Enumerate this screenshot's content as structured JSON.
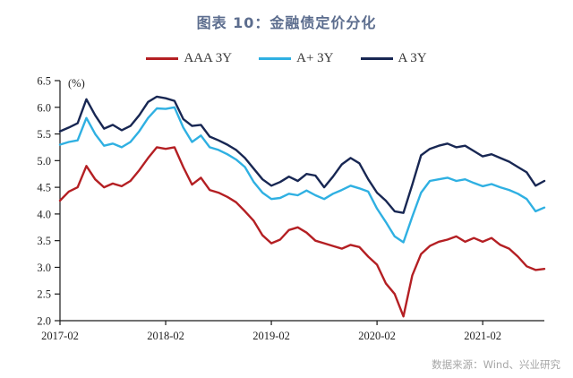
{
  "title": "图表 10：金融债定价分化",
  "source_note": "数据来源：Wind、兴业研究",
  "colors": {
    "axis": "#1a1a1a",
    "tick_text": "#222222",
    "title": "#5c6d8e",
    "source": "#a6a6a6"
  },
  "legend": [
    {
      "label": "AAA 3Y",
      "color": "#b41f23"
    },
    {
      "label": "A+ 3Y",
      "color": "#2fb0e2"
    },
    {
      "label": "A 3Y",
      "color": "#182753"
    }
  ],
  "chart_data": {
    "type": "line",
    "title": "图表 10：金融债定价分化",
    "unit_label": "(%)",
    "xlabel": "",
    "ylabel": "(%)",
    "ylim": [
      2.0,
      6.5
    ],
    "y_tick_step": 0.5,
    "y_tick_labels": [
      "6.5",
      "6.0",
      "5.5",
      "5.0",
      "4.5",
      "4.0",
      "3.5",
      "3.0",
      "2.5",
      "2.0"
    ],
    "x_tick_labels": [
      "2017-02",
      "2018-02",
      "2019-02",
      "2020-02",
      "2021-02"
    ],
    "x_tick_month_index": [
      0,
      12,
      24,
      36,
      48
    ],
    "grid": false,
    "legend_position": "top",
    "categories": [
      "2017-02",
      "2017-03",
      "2017-04",
      "2017-05",
      "2017-06",
      "2017-07",
      "2017-08",
      "2017-09",
      "2017-10",
      "2017-11",
      "2017-12",
      "2018-01",
      "2018-02",
      "2018-03",
      "2018-04",
      "2018-05",
      "2018-06",
      "2018-07",
      "2018-08",
      "2018-09",
      "2018-10",
      "2018-11",
      "2018-12",
      "2019-01",
      "2019-02",
      "2019-03",
      "2019-04",
      "2019-05",
      "2019-06",
      "2019-07",
      "2019-08",
      "2019-09",
      "2019-10",
      "2019-11",
      "2019-12",
      "2020-01",
      "2020-02",
      "2020-03",
      "2020-04",
      "2020-05",
      "2020-06",
      "2020-07",
      "2020-08",
      "2020-09",
      "2020-10",
      "2020-11",
      "2020-12",
      "2021-01",
      "2021-02",
      "2021-03",
      "2021-04",
      "2021-05",
      "2021-06",
      "2021-07",
      "2021-08",
      "2021-09"
    ],
    "series": [
      {
        "name": "AAA 3Y",
        "color": "#b41f23",
        "values": [
          4.25,
          4.42,
          4.5,
          4.9,
          4.65,
          4.5,
          4.57,
          4.52,
          4.62,
          4.82,
          5.05,
          5.25,
          5.22,
          5.25,
          4.88,
          4.55,
          4.68,
          4.45,
          4.4,
          4.32,
          4.22,
          4.05,
          3.87,
          3.6,
          3.45,
          3.52,
          3.7,
          3.75,
          3.65,
          3.5,
          3.45,
          3.4,
          3.35,
          3.42,
          3.38,
          3.2,
          3.05,
          2.7,
          2.5,
          2.08,
          2.85,
          3.25,
          3.4,
          3.48,
          3.52,
          3.58,
          3.48,
          3.55,
          3.48,
          3.55,
          3.42,
          3.35,
          3.2,
          3.02,
          2.95,
          2.97
        ]
      },
      {
        "name": "A+ 3Y",
        "color": "#2fb0e2",
        "values": [
          5.3,
          5.35,
          5.38,
          5.8,
          5.5,
          5.28,
          5.32,
          5.25,
          5.35,
          5.55,
          5.8,
          5.98,
          5.97,
          6.0,
          5.62,
          5.35,
          5.47,
          5.25,
          5.2,
          5.12,
          5.02,
          4.88,
          4.6,
          4.4,
          4.28,
          4.3,
          4.38,
          4.35,
          4.44,
          4.35,
          4.28,
          4.38,
          4.45,
          4.53,
          4.48,
          4.42,
          4.1,
          3.85,
          3.58,
          3.47,
          3.95,
          4.4,
          4.62,
          4.65,
          4.68,
          4.62,
          4.65,
          4.58,
          4.52,
          4.56,
          4.5,
          4.45,
          4.38,
          4.28,
          4.05,
          4.12
        ]
      },
      {
        "name": "A 3Y",
        "color": "#182753",
        "values": [
          5.55,
          5.62,
          5.7,
          6.15,
          5.85,
          5.6,
          5.67,
          5.57,
          5.65,
          5.85,
          6.1,
          6.2,
          6.17,
          6.12,
          5.78,
          5.65,
          5.67,
          5.45,
          5.38,
          5.3,
          5.2,
          5.05,
          4.85,
          4.65,
          4.53,
          4.6,
          4.7,
          4.62,
          4.75,
          4.72,
          4.5,
          4.7,
          4.93,
          5.05,
          4.95,
          4.65,
          4.4,
          4.25,
          4.05,
          4.02,
          4.55,
          5.1,
          5.22,
          5.28,
          5.32,
          5.25,
          5.28,
          5.18,
          5.08,
          5.12,
          5.05,
          4.98,
          4.88,
          4.78,
          4.53,
          4.62
        ]
      }
    ]
  }
}
